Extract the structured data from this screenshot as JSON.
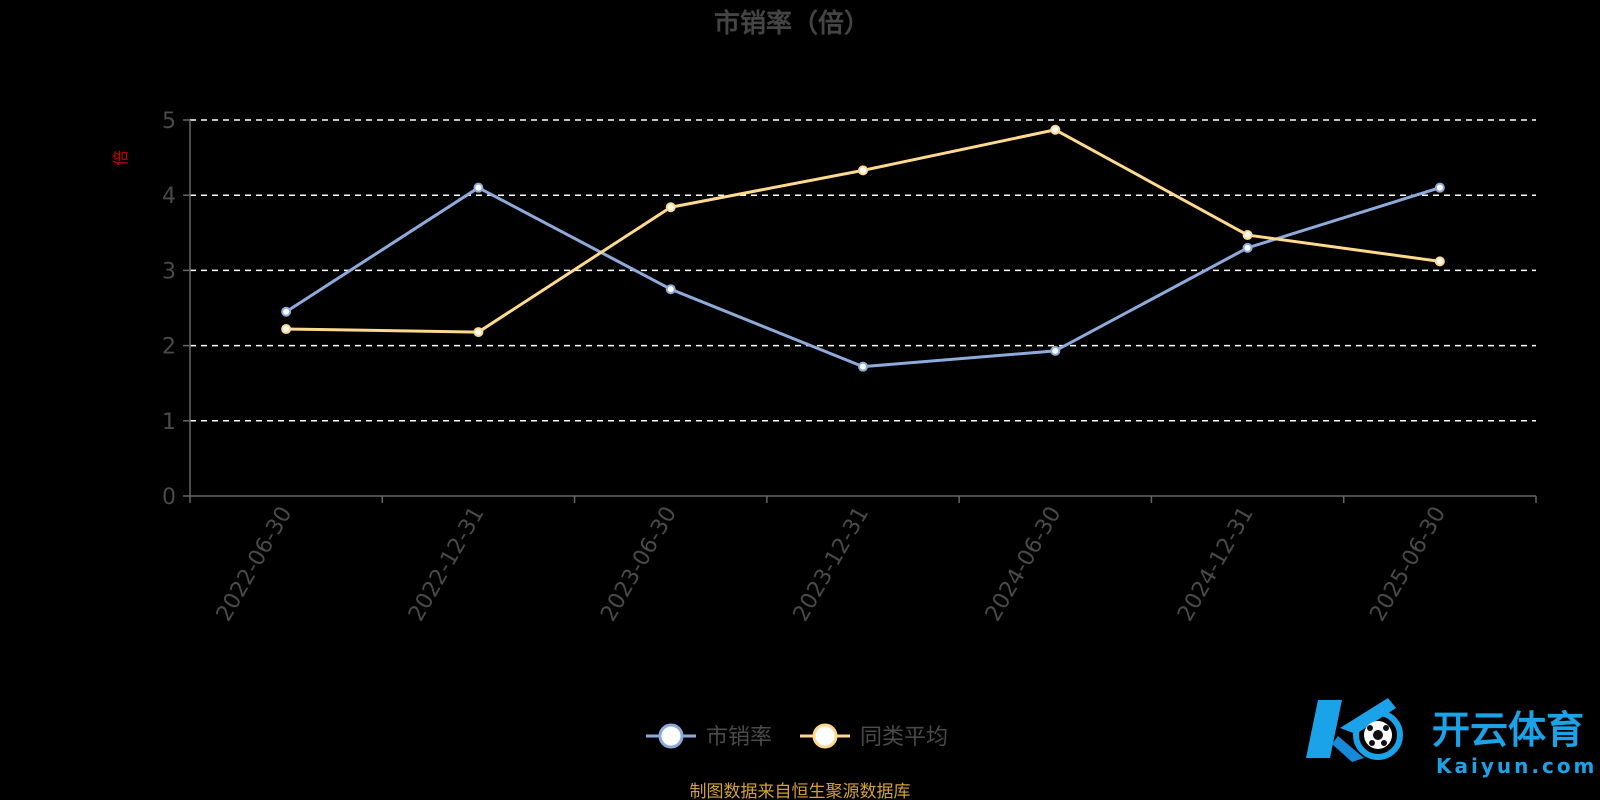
{
  "chart_data": {
    "type": "line",
    "title": "市销率（倍）",
    "ylabel": "倍",
    "xlabel": "",
    "categories": [
      "2022-06-30",
      "2022-12-31",
      "2023-06-30",
      "2023-12-31",
      "2024-06-30",
      "2024-12-31",
      "2025-06-30"
    ],
    "series": [
      {
        "name": "市销率",
        "color": "#8eaadb",
        "values": [
          2.45,
          4.1,
          2.75,
          1.72,
          1.93,
          3.3,
          4.1
        ]
      },
      {
        "name": "同类平均",
        "color": "#ffd98e",
        "values": [
          2.22,
          2.18,
          3.84,
          4.33,
          4.87,
          3.47,
          3.12
        ]
      }
    ],
    "ylim": [
      0,
      5
    ],
    "yticks": [
      "0",
      "1",
      "2",
      "3",
      "4",
      "5"
    ],
    "grid": true,
    "legend": "bottom-center"
  },
  "source_note": "制图数据来自恒生聚源数据库",
  "watermark": {
    "brand": "开云体育",
    "url": "Kaiyun.com"
  },
  "colors": {
    "background": "#000000",
    "ylabel": "#cc0000",
    "source": "#d4a03a",
    "grid": "#ffffff",
    "axis": "#666666"
  }
}
